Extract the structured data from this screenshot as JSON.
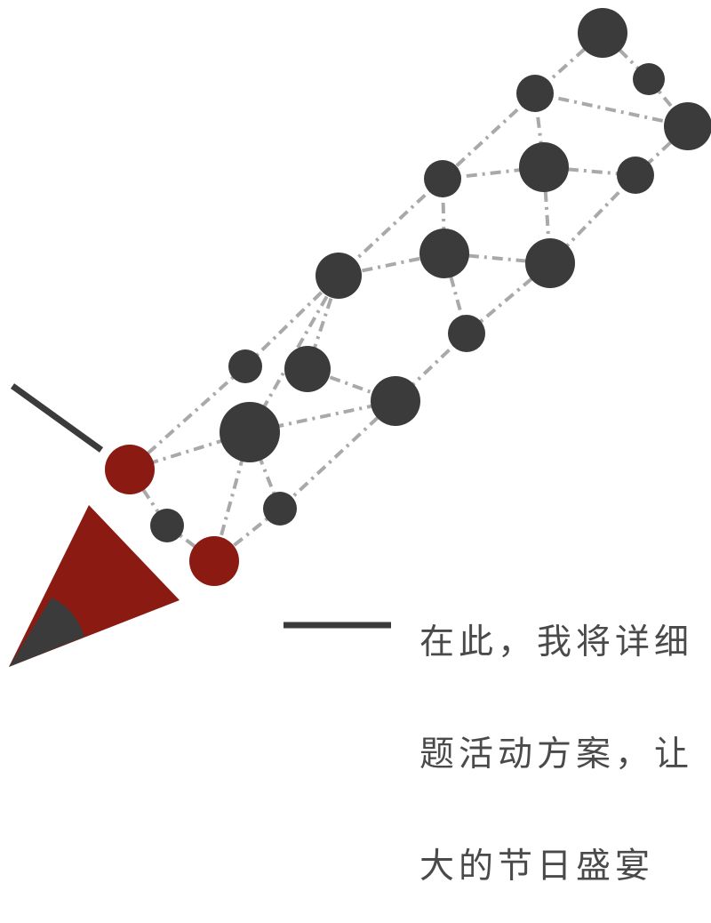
{
  "caption": {
    "lines": [
      "在此，我将详细",
      "题活动方案，让",
      "大的节日盛宴"
    ]
  },
  "colors": {
    "node_dark": "#3b3b3b",
    "node_accent": "#8b1a12",
    "edge": "#a9a9a9",
    "pencil_body": "#8b1a12",
    "pencil_tip": "#3b3b3b",
    "rule_line": "#3b3b3b"
  },
  "icons": [
    "pencil-icon",
    "network-graph"
  ]
}
